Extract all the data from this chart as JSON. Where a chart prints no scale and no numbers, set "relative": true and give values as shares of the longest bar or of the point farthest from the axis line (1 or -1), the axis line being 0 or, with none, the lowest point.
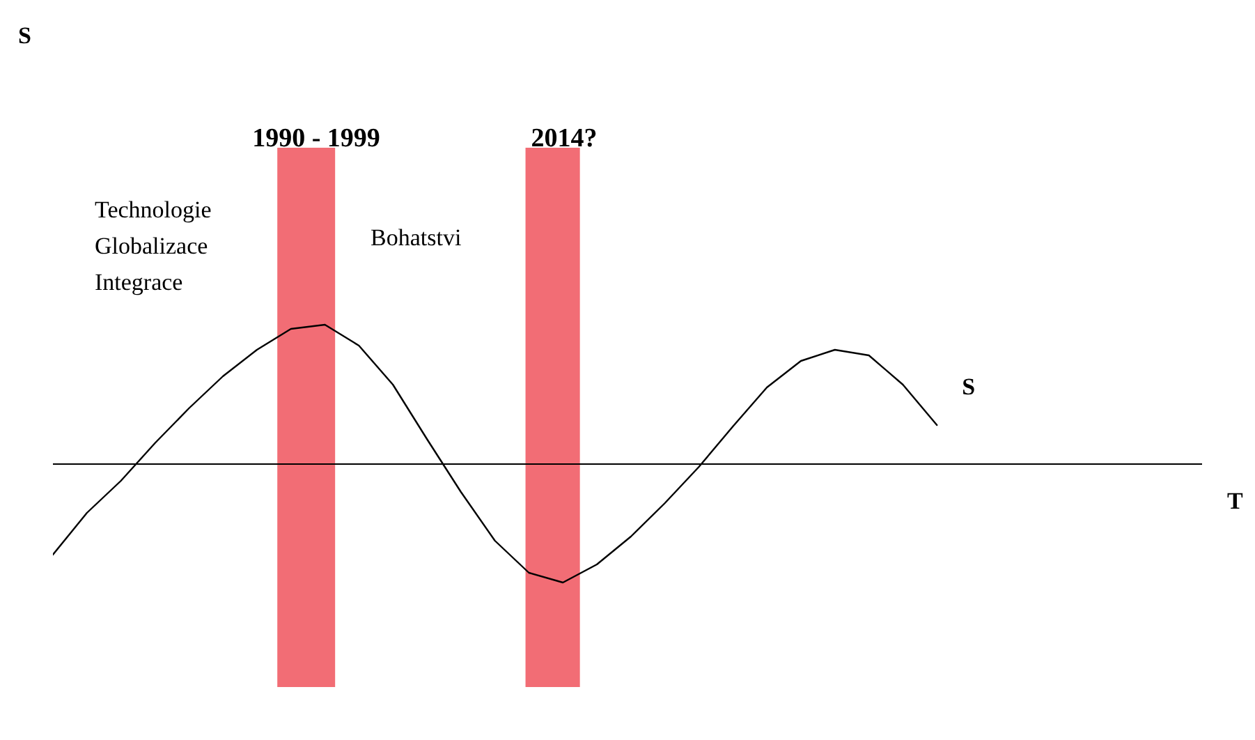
{
  "chart_data": {
    "type": "line",
    "relative": true,
    "marker": "none",
    "line_style": "solid",
    "categories": [
      null,
      null,
      null,
      null,
      null,
      null,
      null,
      null,
      null,
      null,
      null,
      null,
      null,
      null,
      null,
      null,
      null,
      null,
      null,
      null,
      null,
      null,
      null,
      null,
      null,
      null,
      null
    ],
    "series": [
      {
        "name": "S",
        "color": "#000000",
        "values": [
          -0.65,
          -0.35,
          -0.12,
          0.15,
          0.4,
          0.63,
          0.82,
          0.97,
          1,
          0.85,
          0.57,
          0.18,
          -0.2,
          -0.55,
          -0.78,
          -0.85,
          -0.72,
          -0.52,
          -0.28,
          -0.02,
          0.27,
          0.55,
          0.74,
          0.82,
          0.78,
          0.57,
          0.28
        ]
      }
    ],
    "annotations": [
      "S",
      "T",
      "1990 - 1999",
      "2014?",
      "Technologie\nGlobalizace\nIntegrace",
      "Bohatstvi"
    ]
  }
}
